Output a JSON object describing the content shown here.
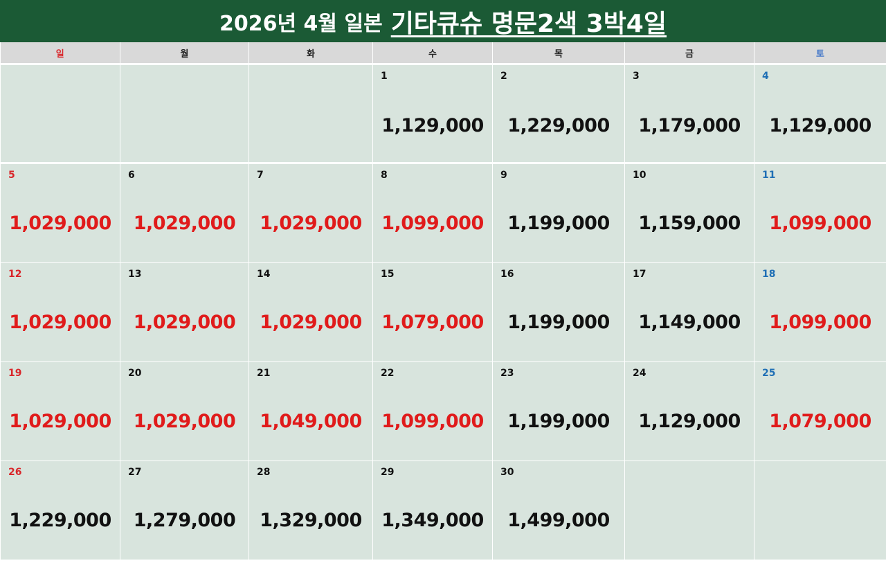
{
  "title": {
    "plain": "2026년 4월 일본",
    "emphasis": "기타큐슈 명문2색 3박4일"
  },
  "weekdays": [
    "일",
    "월",
    "화",
    "수",
    "목",
    "금",
    "토"
  ],
  "colors": {
    "header_bg": "#1b5a35",
    "cell_bg": "#d8e4dd",
    "sunday": "#d9262a",
    "saturday": "#1f6fb5",
    "highlight_price": "#e01b1b",
    "normal_price": "#111111"
  },
  "weeks": [
    [
      null,
      null,
      null,
      {
        "day": "1",
        "price": "1,129,000",
        "highlight": false
      },
      {
        "day": "2",
        "price": "1,229,000",
        "highlight": false
      },
      {
        "day": "3",
        "price": "1,179,000",
        "highlight": false
      },
      {
        "day": "4",
        "price": "1,129,000",
        "highlight": false
      }
    ],
    [
      {
        "day": "5",
        "price": "1,029,000",
        "highlight": true
      },
      {
        "day": "6",
        "price": "1,029,000",
        "highlight": true
      },
      {
        "day": "7",
        "price": "1,029,000",
        "highlight": true
      },
      {
        "day": "8",
        "price": "1,099,000",
        "highlight": true
      },
      {
        "day": "9",
        "price": "1,199,000",
        "highlight": false
      },
      {
        "day": "10",
        "price": "1,159,000",
        "highlight": false
      },
      {
        "day": "11",
        "price": "1,099,000",
        "highlight": true
      }
    ],
    [
      {
        "day": "12",
        "price": "1,029,000",
        "highlight": true
      },
      {
        "day": "13",
        "price": "1,029,000",
        "highlight": true
      },
      {
        "day": "14",
        "price": "1,029,000",
        "highlight": true
      },
      {
        "day": "15",
        "price": "1,079,000",
        "highlight": true
      },
      {
        "day": "16",
        "price": "1,199,000",
        "highlight": false
      },
      {
        "day": "17",
        "price": "1,149,000",
        "highlight": false
      },
      {
        "day": "18",
        "price": "1,099,000",
        "highlight": true
      }
    ],
    [
      {
        "day": "19",
        "price": "1,029,000",
        "highlight": true
      },
      {
        "day": "20",
        "price": "1,029,000",
        "highlight": true
      },
      {
        "day": "21",
        "price": "1,049,000",
        "highlight": true
      },
      {
        "day": "22",
        "price": "1,099,000",
        "highlight": true
      },
      {
        "day": "23",
        "price": "1,199,000",
        "highlight": false
      },
      {
        "day": "24",
        "price": "1,129,000",
        "highlight": false
      },
      {
        "day": "25",
        "price": "1,079,000",
        "highlight": true
      }
    ],
    [
      {
        "day": "26",
        "price": "1,229,000",
        "highlight": false
      },
      {
        "day": "27",
        "price": "1,279,000",
        "highlight": false
      },
      {
        "day": "28",
        "price": "1,329,000",
        "highlight": false
      },
      {
        "day": "29",
        "price": "1,349,000",
        "highlight": false
      },
      {
        "day": "30",
        "price": "1,499,000",
        "highlight": false
      },
      null,
      null
    ]
  ]
}
